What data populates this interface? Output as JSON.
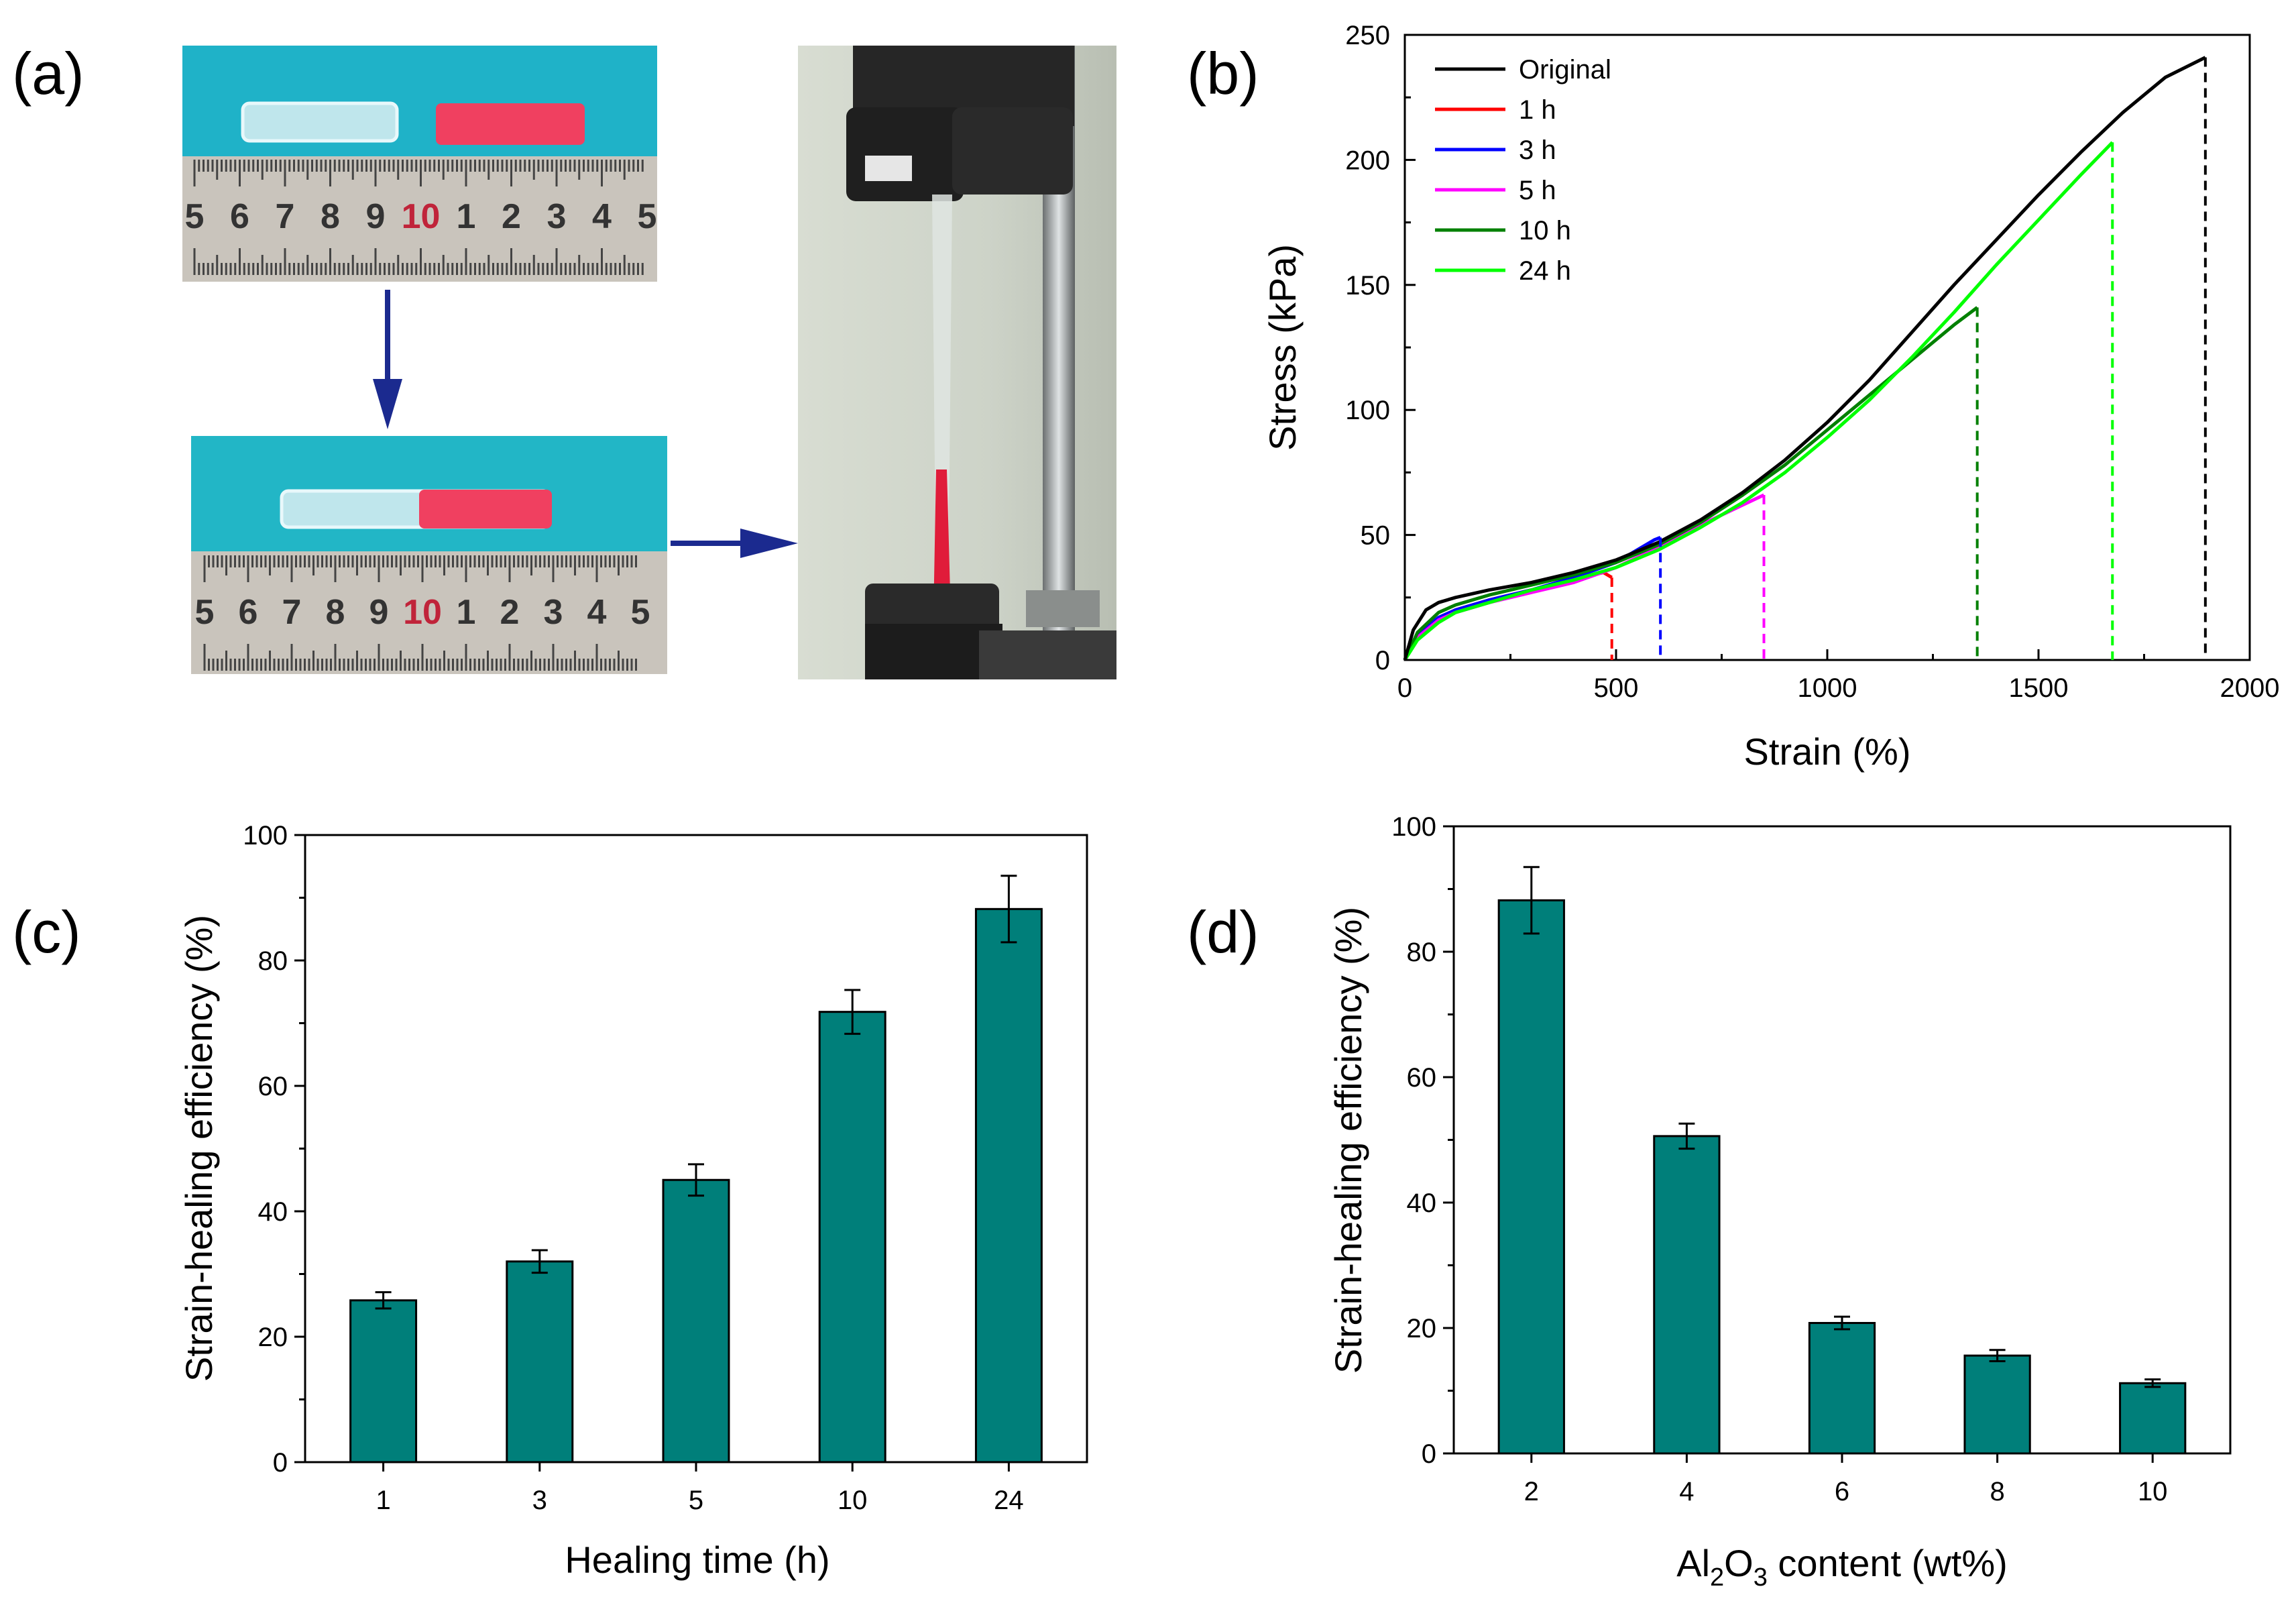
{
  "panel_labels": {
    "a": "(a)",
    "b": "(b)",
    "c": "(c)",
    "d": "(d)"
  },
  "photos": {
    "ruler_numbers": [
      "5",
      "6",
      "7",
      "8",
      "9",
      "10",
      "1",
      "2",
      "3",
      "4",
      "5"
    ]
  },
  "colors": {
    "bar_fill": "#007f7a",
    "arrow": "#1b2a8f",
    "photo_bg": "#22b6c6",
    "pink_sample": "#f04060",
    "original": "#000000",
    "h1": "#ff0000",
    "h3": "#0000ff",
    "h5": "#ff00ff",
    "h10": "#008000",
    "h24": "#00ff00"
  },
  "chart_data": [
    {
      "id": "b",
      "type": "line",
      "xlabel": "Strain (%)",
      "ylabel": "Stress (kPa)",
      "xlim": [
        0,
        2000
      ],
      "ylim": [
        0,
        250
      ],
      "xticks": [
        0,
        500,
        1000,
        1500,
        2000
      ],
      "yticks": [
        0,
        50,
        100,
        150,
        200,
        250
      ],
      "legend_position": "top-left",
      "series": [
        {
          "name": "Original",
          "color": "#000000",
          "break_strain": 1895,
          "x": [
            0,
            20,
            50,
            80,
            120,
            200,
            300,
            400,
            500,
            600,
            700,
            800,
            900,
            1000,
            1100,
            1200,
            1300,
            1400,
            1500,
            1600,
            1700,
            1800,
            1895
          ],
          "y": [
            0,
            12,
            20,
            23,
            25,
            28,
            31,
            35,
            40,
            47,
            56,
            67,
            80,
            95,
            112,
            131,
            150,
            168,
            186,
            203,
            219,
            233,
            241
          ]
        },
        {
          "name": "1 h",
          "color": "#ff0000",
          "break_strain": 490,
          "x": [
            0,
            30,
            80,
            120,
            200,
            300,
            400,
            470,
            490
          ],
          "y": [
            0,
            10,
            17,
            20,
            24,
            28,
            32,
            35,
            33
          ]
        },
        {
          "name": "3 h",
          "color": "#0000ff",
          "break_strain": 605,
          "x": [
            0,
            30,
            80,
            120,
            200,
            300,
            400,
            500,
            590,
            605
          ],
          "y": [
            0,
            10,
            17,
            20,
            24,
            28,
            33,
            39,
            48,
            49
          ]
        },
        {
          "name": "5 h",
          "color": "#ff00ff",
          "break_strain": 850,
          "x": [
            0,
            30,
            80,
            120,
            200,
            300,
            400,
            500,
            600,
            700,
            800,
            850
          ],
          "y": [
            0,
            9,
            16,
            19,
            23,
            27,
            31,
            37,
            45,
            54,
            62,
            66
          ]
        },
        {
          "name": "10 h",
          "color": "#008000",
          "break_strain": 1355,
          "x": [
            0,
            30,
            80,
            120,
            200,
            300,
            400,
            500,
            600,
            700,
            800,
            900,
            1000,
            1100,
            1200,
            1300,
            1355
          ],
          "y": [
            0,
            11,
            19,
            22,
            26,
            30,
            34,
            39,
            46,
            55,
            66,
            78,
            92,
            106,
            120,
            134,
            141
          ]
        },
        {
          "name": "24 h",
          "color": "#00ff00",
          "break_strain": 1675,
          "x": [
            0,
            30,
            80,
            120,
            200,
            300,
            400,
            500,
            600,
            700,
            800,
            900,
            1000,
            1100,
            1200,
            1300,
            1400,
            1500,
            1600,
            1675
          ],
          "y": [
            0,
            8,
            15,
            19,
            23,
            28,
            32,
            37,
            44,
            53,
            63,
            75,
            89,
            104,
            121,
            139,
            158,
            176,
            194,
            207
          ]
        }
      ]
    },
    {
      "id": "c",
      "type": "bar",
      "xlabel": "Healing time (h)",
      "ylabel": "Strain-healing efficiency (%)",
      "ylim": [
        0,
        100
      ],
      "yticks": [
        0,
        20,
        40,
        60,
        80,
        100
      ],
      "categories": [
        "1",
        "3",
        "5",
        "10",
        "24"
      ],
      "values": [
        25.8,
        32.0,
        45.0,
        71.8,
        88.2
      ],
      "errors": [
        1.3,
        1.8,
        2.5,
        3.5,
        5.3
      ]
    },
    {
      "id": "d",
      "type": "bar",
      "xlabel_main": "Al",
      "xlabel_sub1": "2",
      "xlabel_mid": "O",
      "xlabel_sub2": "3",
      "xlabel_tail": " content (wt%)",
      "ylabel": "Strain-healing efficiency (%)",
      "ylim": [
        0,
        100
      ],
      "yticks": [
        0,
        20,
        40,
        60,
        80,
        100
      ],
      "categories": [
        "2",
        "4",
        "6",
        "8",
        "10"
      ],
      "values": [
        88.2,
        50.6,
        20.8,
        15.6,
        11.2
      ],
      "errors": [
        5.3,
        2.0,
        1.0,
        0.9,
        0.6
      ]
    }
  ]
}
